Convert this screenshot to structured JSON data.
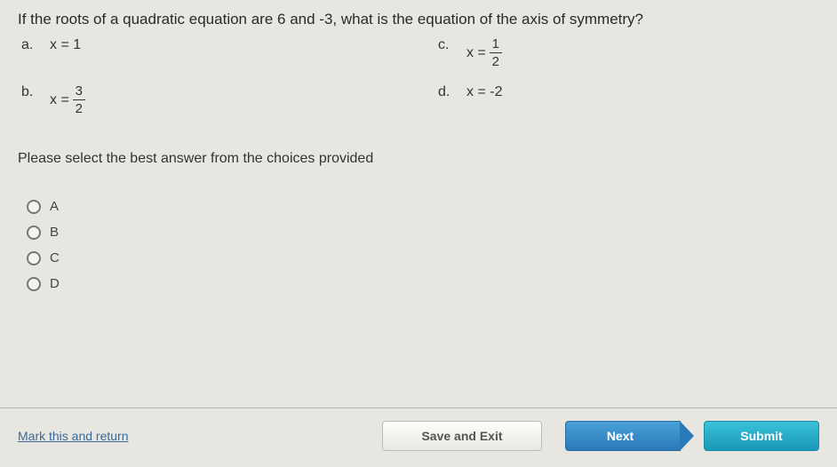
{
  "question": "If the roots of a quadratic equation are 6 and -3, what is the equation of the axis of symmetry?",
  "options": {
    "a": {
      "letter": "a.",
      "prefix": "x = ",
      "num": "1",
      "den": "",
      "is_frac": false,
      "plain": "x = 1"
    },
    "c": {
      "letter": "c.",
      "prefix": "x = ",
      "num": "1",
      "den": "2",
      "is_frac": true
    },
    "b": {
      "letter": "b.",
      "prefix": "x = ",
      "num": "3",
      "den": "2",
      "is_frac": true
    },
    "d": {
      "letter": "d.",
      "prefix": "",
      "num": "",
      "den": "",
      "is_frac": false,
      "plain": "x = -2"
    }
  },
  "instruction": "Please select the best answer from the choices provided",
  "choices": {
    "A": "A",
    "B": "B",
    "C": "C",
    "D": "D"
  },
  "footer": {
    "mark": "Mark this and return",
    "save": "Save and Exit",
    "next": "Next",
    "submit": "Submit"
  },
  "colors": {
    "background": "#e8e6e0",
    "text": "#333333",
    "link": "#3a6a9a",
    "next_btn_top": "#4aa0d8",
    "next_btn_bottom": "#2a7ab8",
    "submit_btn_top": "#3ac1d8",
    "submit_btn_bottom": "#1a99b8",
    "divider": "#b8b6b0"
  }
}
